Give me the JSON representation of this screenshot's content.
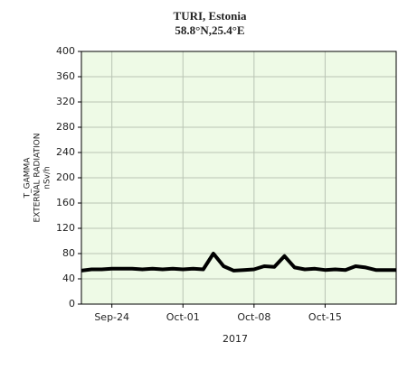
{
  "chart_data": {
    "type": "line",
    "title": "TURI, Estonia",
    "subtitle": "58.8°N,25.4°E",
    "y_label": [
      "T_GAMMA",
      "EXTERNAL RADIATION",
      "nSv/h"
    ],
    "x_label": "2017",
    "x": [
      "2017-09-21",
      "2017-09-22",
      "2017-09-23",
      "2017-09-24",
      "2017-09-25",
      "2017-09-26",
      "2017-09-27",
      "2017-09-28",
      "2017-09-29",
      "2017-09-30",
      "2017-10-01",
      "2017-10-02",
      "2017-10-03",
      "2017-10-04",
      "2017-10-05",
      "2017-10-06",
      "2017-10-07",
      "2017-10-08",
      "2017-10-09",
      "2017-10-10",
      "2017-10-11",
      "2017-10-12",
      "2017-10-13",
      "2017-10-14",
      "2017-10-15",
      "2017-10-16",
      "2017-10-17",
      "2017-10-18",
      "2017-10-19",
      "2017-10-20",
      "2017-10-21",
      "2017-10-22"
    ],
    "series": [
      {
        "name": "T_GAMMA",
        "color": "#000000",
        "values": [
          53,
          55,
          55,
          56,
          56,
          56,
          55,
          56,
          55,
          56,
          55,
          56,
          55,
          80,
          60,
          53,
          54,
          55,
          60,
          59,
          76,
          58,
          55,
          56,
          54,
          55,
          54,
          60,
          58,
          54,
          54,
          54
        ]
      }
    ],
    "xlim": [
      "2017-09-21",
      "2017-10-22"
    ],
    "xticks": [
      {
        "value": "2017-09-24",
        "label": "Sep-24"
      },
      {
        "value": "2017-10-01",
        "label": "Oct-01"
      },
      {
        "value": "2017-10-08",
        "label": "Oct-08"
      },
      {
        "value": "2017-10-15",
        "label": "Oct-15"
      }
    ],
    "ylim": [
      0,
      400
    ],
    "yticks": [
      0,
      40,
      80,
      120,
      160,
      200,
      240,
      280,
      320,
      360,
      400
    ],
    "grid": true,
    "background": "#eefae6"
  }
}
